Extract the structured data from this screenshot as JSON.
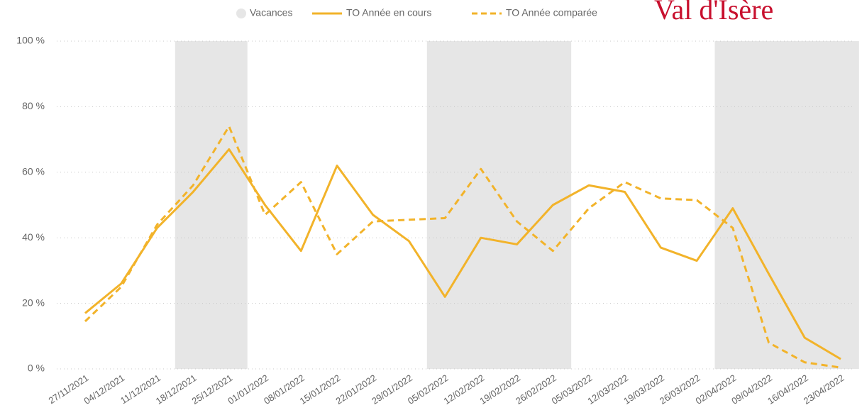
{
  "chart_data": {
    "type": "line",
    "logo_text": "Val d'Isère",
    "categories": [
      "27/11/2021",
      "04/12/2021",
      "11/12/2021",
      "18/12/2021",
      "25/12/2021",
      "01/01/2022",
      "08/01/2022",
      "15/01/2022",
      "22/01/2022",
      "29/01/2022",
      "05/02/2022",
      "12/02/2022",
      "19/02/2022",
      "26/02/2022",
      "05/03/2022",
      "12/03/2022",
      "19/03/2022",
      "26/03/2022",
      "02/04/2022",
      "09/04/2022",
      "16/04/2022",
      "23/04/2022"
    ],
    "series": [
      {
        "name": "Vacances",
        "type": "bar",
        "color": "#e6e6e6",
        "values": [
          null,
          null,
          null,
          100,
          100,
          null,
          null,
          null,
          null,
          null,
          100,
          100,
          100,
          100,
          null,
          null,
          null,
          null,
          100,
          100,
          100,
          100
        ]
      },
      {
        "name": "TO Année en cours",
        "type": "line",
        "style": "solid",
        "color": "#f2b32a",
        "values": [
          17,
          26,
          43,
          54,
          67,
          50,
          36,
          62,
          47,
          39,
          22,
          40,
          38,
          50,
          56,
          54,
          37,
          33,
          49,
          29,
          9.5,
          3
        ]
      },
      {
        "name": "TO Année comparée",
        "type": "line",
        "style": "dashed",
        "color": "#f2b32a",
        "values": [
          14.5,
          25,
          44,
          56,
          74,
          47,
          57,
          35,
          45,
          45.5,
          46,
          61,
          45,
          36,
          49,
          57,
          52,
          51.5,
          43,
          8,
          2,
          0.4
        ]
      }
    ],
    "ylim": [
      0,
      100
    ],
    "yticks": [
      {
        "value": 0,
        "label": "0 %"
      },
      {
        "value": 20,
        "label": "20 %"
      },
      {
        "value": 40,
        "label": "40 %"
      },
      {
        "value": 60,
        "label": "60 %"
      },
      {
        "value": 80,
        "label": "80 %"
      },
      {
        "value": 100,
        "label": "100 %"
      }
    ],
    "grid": true
  }
}
